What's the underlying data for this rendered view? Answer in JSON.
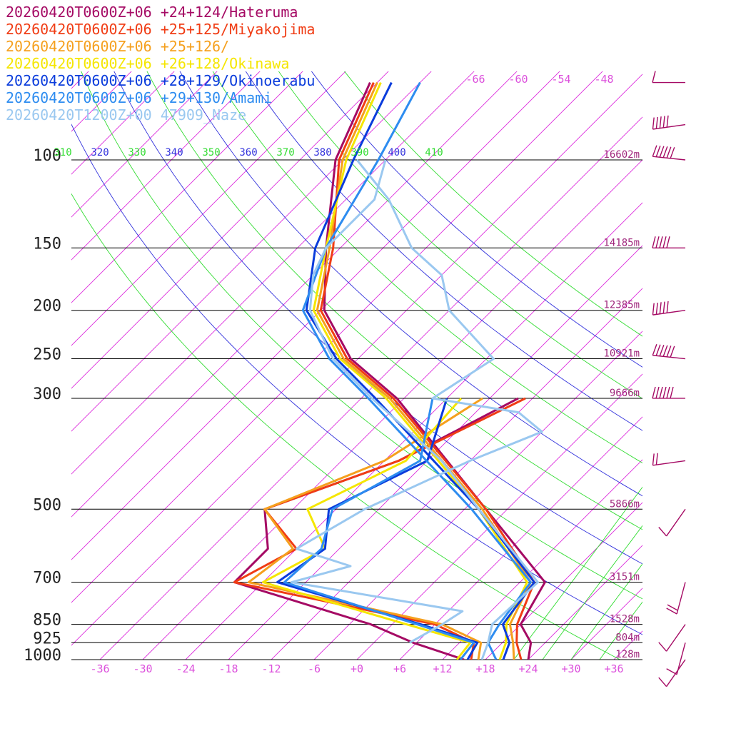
{
  "chart_data": {
    "type": "line",
    "title": "",
    "xlabel": "",
    "ylabel": "",
    "x_axis": {
      "ticks": [
        -36,
        -30,
        -24,
        -18,
        -12,
        -6,
        0,
        6,
        12,
        18,
        24,
        30,
        36
      ],
      "tick_labels": [
        "-36",
        "-30",
        "-24",
        "-18",
        "-12",
        "-6",
        "+0",
        "+6",
        "+12",
        "+18",
        "+24",
        "+30",
        "+36"
      ],
      "xlim": [
        -40,
        40
      ]
    },
    "y_axis": {
      "scale": "log",
      "pressure_levels": [
        100,
        150,
        200,
        250,
        300,
        500,
        700,
        850,
        925,
        1000
      ],
      "pressure_labels": [
        "100",
        "150",
        "200",
        "250",
        "300",
        "500",
        "700",
        "850",
        "925",
        "1000"
      ],
      "ylim": [
        1000,
        60
      ]
    },
    "height_labels": [
      {
        "p": 100,
        "label": "16602m"
      },
      {
        "p": 150,
        "label": "14185m"
      },
      {
        "p": 200,
        "label": "12385m"
      },
      {
        "p": 250,
        "label": "10921m"
      },
      {
        "p": 300,
        "label": "9666m"
      },
      {
        "p": 500,
        "label": "5866m"
      },
      {
        "p": 700,
        "label": "3151m"
      },
      {
        "p": 850,
        "label": "1528m"
      },
      {
        "p": 925,
        "label": "804m"
      },
      {
        "p": 1000,
        "label": "128m"
      }
    ],
    "isotherm_labels": [
      "-66",
      "-60",
      "-54",
      "-48"
    ],
    "isotherm_label_values": [
      -66,
      -60,
      -54,
      -48
    ],
    "theta_labels": [
      "310",
      "320",
      "330",
      "340",
      "350",
      "360",
      "370",
      "380",
      "390",
      "400",
      "410"
    ],
    "theta_values": [
      310,
      320,
      330,
      340,
      350,
      360,
      370,
      380,
      390,
      400,
      410
    ],
    "series": [
      {
        "name": "20260420T0600Z+06 +24+124/Hateruma",
        "color": "#a50a64",
        "temperature": [
          [
            1000,
            24.0
          ],
          [
            925,
            22.0
          ],
          [
            850,
            18.0
          ],
          [
            700,
            15.5
          ],
          [
            500,
            -3.0
          ],
          [
            300,
            -31.0
          ],
          [
            250,
            -43.0
          ],
          [
            200,
            -53.5
          ],
          [
            150,
            -62.0
          ],
          [
            100,
            -73.0
          ],
          [
            70,
            -79.0
          ]
        ],
        "dewpoint": [
          [
            1000,
            15.0
          ],
          [
            925,
            5.5
          ],
          [
            850,
            -3.0
          ],
          [
            700,
            -28.0
          ],
          [
            600,
            -28.0
          ],
          [
            500,
            -34.0
          ],
          [
            400,
            -22.0
          ],
          [
            300,
            -14.0
          ]
        ]
      },
      {
        "name": "20260420T0600Z+06 +25+125/Miyakojima",
        "color": "#f03c14",
        "temperature": [
          [
            1000,
            23.0
          ],
          [
            925,
            20.0
          ],
          [
            850,
            17.5
          ],
          [
            700,
            14.0
          ],
          [
            500,
            -3.0
          ],
          [
            300,
            -31.5
          ],
          [
            250,
            -43.5
          ],
          [
            200,
            -54.0
          ],
          [
            150,
            -61.0
          ],
          [
            100,
            -72.5
          ],
          [
            70,
            -78.5
          ]
        ],
        "dewpoint": [
          [
            1000,
            16.0
          ],
          [
            925,
            14.0
          ],
          [
            850,
            6.0
          ],
          [
            700,
            -28.0
          ],
          [
            600,
            -24.0
          ],
          [
            500,
            -34.0
          ],
          [
            400,
            -22.0
          ],
          [
            300,
            -13.0
          ]
        ]
      },
      {
        "name": "20260420T0600Z+06 +25+126/",
        "color": "#f5a01e",
        "temperature": [
          [
            1000,
            22.0
          ],
          [
            925,
            19.5
          ],
          [
            850,
            16.5
          ],
          [
            700,
            13.5
          ],
          [
            500,
            -3.5
          ],
          [
            300,
            -32.0
          ],
          [
            250,
            -44.0
          ],
          [
            200,
            -54.5
          ],
          [
            150,
            -61.5
          ],
          [
            100,
            -72.0
          ],
          [
            70,
            -78.0
          ]
        ],
        "dewpoint": [
          [
            1000,
            17.0
          ],
          [
            925,
            15.0
          ],
          [
            850,
            7.0
          ],
          [
            700,
            -26.0
          ],
          [
            600,
            -24.5
          ],
          [
            500,
            -34.0
          ],
          [
            400,
            -24.0
          ],
          [
            300,
            -19.0
          ]
        ]
      },
      {
        "name": "20260420T0600Z+06 +26+128/Okinawa",
        "color": "#f5e600",
        "temperature": [
          [
            1000,
            20.0
          ],
          [
            925,
            18.5
          ],
          [
            850,
            16.0
          ],
          [
            700,
            13.0
          ],
          [
            500,
            -4.0
          ],
          [
            300,
            -32.5
          ],
          [
            250,
            -44.5
          ],
          [
            200,
            -55.0
          ],
          [
            150,
            -62.0
          ],
          [
            100,
            -71.5
          ],
          [
            70,
            -77.5
          ]
        ],
        "dewpoint": [
          [
            1000,
            14.0
          ],
          [
            925,
            13.5
          ],
          [
            850,
            2.0
          ],
          [
            700,
            -24.0
          ],
          [
            600,
            -20.0
          ],
          [
            500,
            -28.0
          ],
          [
            400,
            -21.0
          ],
          [
            300,
            -22.0
          ]
        ]
      },
      {
        "name": "20260420T0600Z+06 +28+129/Okinoerabu",
        "color": "#0a3cdc",
        "temperature": [
          [
            1000,
            20.5
          ],
          [
            925,
            19.0
          ],
          [
            850,
            15.5
          ],
          [
            700,
            14.0
          ],
          [
            500,
            -4.0
          ],
          [
            300,
            -34.0
          ],
          [
            250,
            -45.0
          ],
          [
            200,
            -56.0
          ],
          [
            150,
            -63.5
          ],
          [
            100,
            -70.5
          ],
          [
            70,
            -76.0
          ]
        ],
        "dewpoint": [
          [
            1000,
            15.5
          ],
          [
            925,
            14.5
          ],
          [
            850,
            4.0
          ],
          [
            700,
            -22.0
          ],
          [
            600,
            -20.0
          ],
          [
            500,
            -25.0
          ],
          [
            400,
            -18.0
          ],
          [
            300,
            -24.0
          ]
        ]
      },
      {
        "name": "20260420T0600Z+06 +29+130/Amami",
        "color": "#2d8cf0",
        "temperature": [
          [
            1000,
            19.5
          ],
          [
            925,
            16.0
          ],
          [
            850,
            15.0
          ],
          [
            700,
            13.5
          ],
          [
            500,
            -5.0
          ],
          [
            300,
            -35.0
          ],
          [
            250,
            -46.0
          ],
          [
            200,
            -56.5
          ],
          [
            150,
            -62.0
          ],
          [
            100,
            -67.0
          ],
          [
            70,
            -72.0
          ]
        ],
        "dewpoint": [
          [
            1000,
            14.5
          ],
          [
            925,
            14.0
          ],
          [
            850,
            3.5
          ],
          [
            700,
            -21.0
          ],
          [
            600,
            -20.5
          ],
          [
            500,
            -24.5
          ],
          [
            400,
            -19.0
          ],
          [
            300,
            -26.0
          ]
        ]
      },
      {
        "name": "20260420T1200Z+00 47909_Naze",
        "color": "#9ac8f0",
        "temperature": [
          [
            1000,
            17.5
          ],
          [
            925,
            16.0
          ],
          [
            850,
            14.0
          ],
          [
            700,
            14.5
          ],
          [
            500,
            -4.0
          ],
          [
            400,
            -16.0
          ],
          [
            300,
            -34.5
          ],
          [
            250,
            -45.5
          ],
          [
            200,
            -55.5
          ],
          [
            170,
            -60.0
          ],
          [
            150,
            -62.0
          ],
          [
            120,
            -62.0
          ],
          [
            100,
            -66.0
          ]
        ],
        "dewpoint": [
          [
            925,
            5.0
          ],
          [
            850,
            7.0
          ],
          [
            800,
            8.0
          ],
          [
            700,
            -20.0
          ],
          [
            650,
            -14.0
          ],
          [
            600,
            -24.0
          ],
          [
            500,
            -20.0
          ],
          [
            400,
            -12.0
          ],
          [
            350,
            -6.0
          ],
          [
            320,
            -12.0
          ],
          [
            300,
            -26.0
          ],
          [
            250,
            -23.0
          ],
          [
            200,
            -36.0
          ],
          [
            170,
            -42.0
          ],
          [
            150,
            -50.0
          ],
          [
            120,
            -60.0
          ],
          [
            100,
            -70.0
          ]
        ]
      }
    ],
    "wind_barbs": [
      {
        "p": 70,
        "speed_kt": 10
      },
      {
        "p": 85,
        "speed_kt": 50
      },
      {
        "p": 100,
        "speed_kt": 85
      },
      {
        "p": 150,
        "speed_kt": 55
      },
      {
        "p": 200,
        "speed_kt": 55
      },
      {
        "p": 250,
        "speed_kt": 110
      },
      {
        "p": 300,
        "speed_kt": 100
      },
      {
        "p": 400,
        "speed_kt": 20
      },
      {
        "p": 500,
        "speed_kt": 15
      },
      {
        "p": 700,
        "speed_kt": 20
      },
      {
        "p": 850,
        "speed_kt": 10
      },
      {
        "p": 925,
        "speed_kt": 10
      },
      {
        "p": 1000,
        "speed_kt": 10
      }
    ],
    "colors": {
      "isobar": "#000000",
      "isotherm": "#dc28dc",
      "dry_adiabat_a": "#3232dc",
      "dry_adiabat_b": "#32dc32",
      "moist_adiabat": "#32dc32",
      "height_label": "#a0287d",
      "barb": "#a50a64",
      "axis_label": "#dc50dc"
    }
  }
}
